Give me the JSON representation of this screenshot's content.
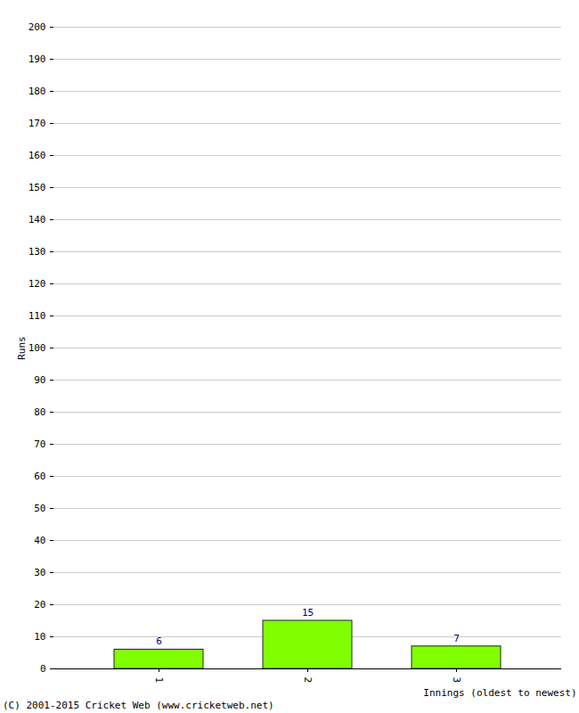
{
  "chart_data": {
    "type": "bar",
    "categories": [
      "1",
      "2",
      "3"
    ],
    "values": [
      6,
      15,
      7
    ],
    "color": "#80ff00",
    "x_label": "Innings (oldest to newest)",
    "y_label": "Runs",
    "caption": "(C) 2001-2015 Cricket Web (www.cricketweb.net)",
    "ylim": [
      0,
      200
    ],
    "yticks": [
      0,
      10,
      20,
      30,
      40,
      50,
      60,
      70,
      80,
      90,
      100,
      110,
      120,
      130,
      140,
      150,
      160,
      170,
      180,
      190,
      200
    ],
    "grid": true,
    "data_labels": true
  }
}
